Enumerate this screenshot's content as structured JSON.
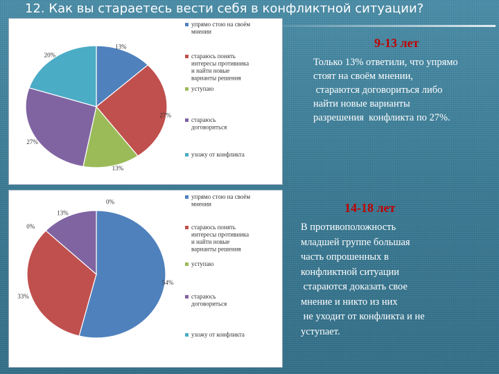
{
  "slide": {
    "title": "12. Как вы стараетесь вести себя в конфликтной ситуации?"
  },
  "section1": {
    "heading": "9-13 лет",
    "lines": [
      "Только 13% ответили, что упрямо",
      "стоят на своём мнении,",
      " стараются договориться либо",
      "найти новые варианты",
      "разрешения  конфликта по 27%."
    ]
  },
  "section2": {
    "heading": "14-18 лет",
    "lines": [
      "В противоположность",
      "младшей группе большая",
      "часть опрошенных в",
      "конфликтной ситуации",
      " стараются доказать свое",
      "мнение и никто из них",
      " не уходит от конфликта и не",
      "уступает."
    ]
  },
  "chart_data": [
    {
      "type": "pie",
      "categories": [
        "упрямо стою на своём мнении",
        "стараюсь понять интересы противника и найти новые варианты решения",
        "уступаю",
        "стараюсь договориться",
        "ухожу от конфликта"
      ],
      "values": [
        13,
        27,
        13,
        27,
        20
      ],
      "value_labels": [
        "13%",
        "27%",
        "13%",
        "27%",
        "20%"
      ],
      "colors": [
        "#4f81bd",
        "#c0504d",
        "#9bbb59",
        "#8064a2",
        "#4bacc6"
      ],
      "legend_lines": [
        [
          "упрямо стою на своём",
          "мнении"
        ],
        [
          "стараюсь понять",
          "интересы противника",
          "и найти новые",
          "варианты решения"
        ],
        [
          "уступаю"
        ],
        [
          "стараюсь",
          "договориться"
        ],
        [
          "ухожу от конфликта"
        ]
      ],
      "legend_placement": "right"
    },
    {
      "type": "pie",
      "categories": [
        "упрямо стою на своём мнении",
        "стараюсь понять интересы противника и найти новые варианты решения",
        "уступаю",
        "стараюсь договориться",
        "ухожу от конфликта"
      ],
      "values": [
        54,
        33,
        0,
        13,
        0
      ],
      "value_labels": [
        "54%",
        "33%",
        "0%",
        "13%",
        "0%"
      ],
      "colors": [
        "#4f81bd",
        "#c0504d",
        "#9bbb59",
        "#8064a2",
        "#4bacc6"
      ],
      "legend_lines": [
        [
          "упрямо стою на своём",
          "мнении"
        ],
        [
          "стараюсь понять",
          "интересы противника",
          "и найти новые",
          "варианты решения"
        ],
        [
          "уступаю"
        ],
        [
          "стараюсь",
          "договориться"
        ],
        [
          "ухожу от конфликта"
        ]
      ],
      "legend_placement": "right"
    }
  ]
}
